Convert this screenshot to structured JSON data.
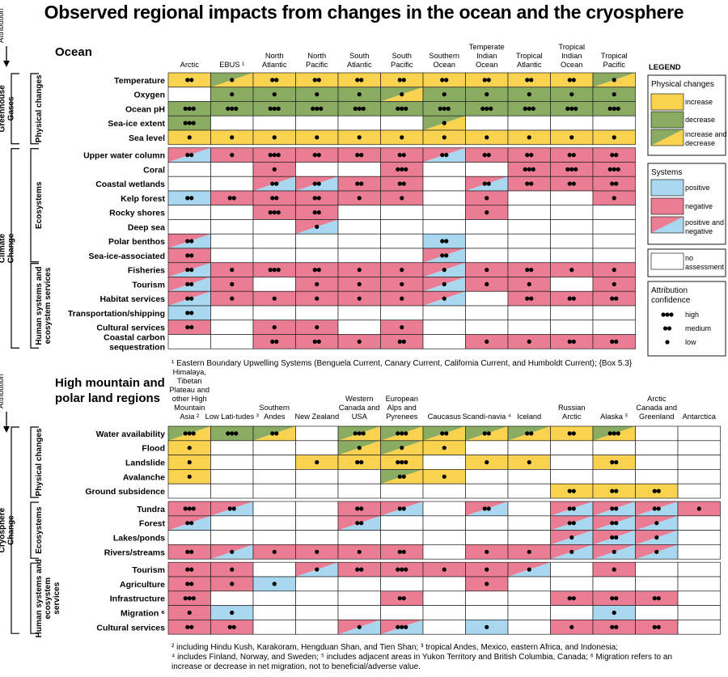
{
  "title": "Observed regional impacts from changes in the ocean and the cryosphere",
  "colors": {
    "increase": "#f9d24f",
    "decrease": "#8aab62",
    "positive": "#a8d7ef",
    "negative": "#ea7d93",
    "none": "#ffffff"
  },
  "attribution_label": "Attribution",
  "legend": {
    "title": "LEGEND",
    "physical_title": "Physical changes",
    "physical_items": [
      "increase",
      "decrease",
      "increase and decrease"
    ],
    "systems_title": "Systems",
    "systems_items": [
      "positive",
      "negative",
      "positive and negative"
    ],
    "no_assessment": "no assessment",
    "confidence_title": "Attribution confidence",
    "confidence_items": [
      "high",
      "medium",
      "low"
    ]
  },
  "chart_data": [
    {
      "type": "table",
      "title": "Ocean",
      "columns": [
        "Arctic",
        "EBUS ¹",
        "North Atlantic",
        "North Pacific",
        "South Atlantic",
        "South Pacific",
        "Southern Ocean",
        "Temperate Indian Ocean",
        "Tropical Atlantic",
        "Tropical Indian Ocean",
        "Tropical Pacific"
      ],
      "drivers": [
        {
          "label": "Greenhouse Gases",
          "groups": [
            {
              "label": "Physical changes",
              "rows": [
                {
                  "label": "Temperature",
                  "cells": [
                    "i2",
                    "id1",
                    "i2",
                    "i2",
                    "i2",
                    "i2",
                    "i2",
                    "i2",
                    "i2",
                    "i2",
                    "id1"
                  ]
                },
                {
                  "label": "Oxygen",
                  "cells": [
                    "n0",
                    "d1",
                    "d1",
                    "d1",
                    "d1",
                    "id1",
                    "d1",
                    "d1",
                    "d1",
                    "d1",
                    "d1"
                  ]
                },
                {
                  "label": "Ocean pH",
                  "cells": [
                    "d3",
                    "d3",
                    "d3",
                    "d3",
                    "d3",
                    "d3",
                    "d3",
                    "d3",
                    "d3",
                    "d3",
                    "d3"
                  ]
                },
                {
                  "label": "Sea-ice extent",
                  "cells": [
                    "d3",
                    "n0",
                    "n0",
                    "n0",
                    "n0",
                    "n0",
                    "id1",
                    "n0",
                    "n0",
                    "n0",
                    "n0"
                  ]
                },
                {
                  "label": "Sea level",
                  "cells": [
                    "i1",
                    "i1",
                    "i1",
                    "i1",
                    "i1",
                    "i1",
                    "i1",
                    "i1",
                    "i1",
                    "i1",
                    "i1"
                  ]
                }
              ]
            }
          ]
        },
        {
          "label": "Climate Change",
          "groups": [
            {
              "label": "Ecosystems",
              "rows": [
                {
                  "label": "Upper water column",
                  "cells": [
                    "pn2",
                    "g1",
                    "g3",
                    "g2",
                    "g2",
                    "g2",
                    "pn2",
                    "g2",
                    "g2",
                    "g2",
                    "g2"
                  ]
                },
                {
                  "label": "Coral",
                  "cells": [
                    "n0",
                    "n0",
                    "g1",
                    "n0",
                    "n0",
                    "g3",
                    "n0",
                    "n0",
                    "g3",
                    "g3",
                    "g3"
                  ]
                },
                {
                  "label": "Coastal wetlands",
                  "cells": [
                    "n0",
                    "n0",
                    "pn2",
                    "pn2",
                    "g2",
                    "g2",
                    "n0",
                    "pn2",
                    "g2",
                    "g2",
                    "g2"
                  ]
                },
                {
                  "label": "Kelp forest",
                  "cells": [
                    "p2",
                    "g2",
                    "g2",
                    "g2",
                    "g1",
                    "g1",
                    "n0",
                    "g1",
                    "n0",
                    "n0",
                    "g1"
                  ]
                },
                {
                  "label": "Rocky shores",
                  "cells": [
                    "n0",
                    "n0",
                    "g3",
                    "g2",
                    "n0",
                    "n0",
                    "n0",
                    "g1",
                    "n0",
                    "n0",
                    "n0"
                  ]
                },
                {
                  "label": "Deep sea",
                  "cells": [
                    "n0",
                    "n0",
                    "n0",
                    "pn1",
                    "n0",
                    "n0",
                    "n0",
                    "n0",
                    "n0",
                    "n0",
                    "n0"
                  ]
                },
                {
                  "label": "Polar benthos",
                  "cells": [
                    "pn2",
                    "n0",
                    "n0",
                    "n0",
                    "n0",
                    "n0",
                    "p2",
                    "n0",
                    "n0",
                    "n0",
                    "n0"
                  ]
                },
                {
                  "label": "Sea-ice-associated",
                  "cells": [
                    "g2",
                    "n0",
                    "n0",
                    "n0",
                    "n0",
                    "n0",
                    "pn2",
                    "n0",
                    "n0",
                    "n0",
                    "n0"
                  ]
                }
              ]
            },
            {
              "label": "Human systems and ecosystem services",
              "rows": [
                {
                  "label": "Fisheries",
                  "cells": [
                    "pn2",
                    "g1",
                    "g3",
                    "g2",
                    "g1",
                    "g1",
                    "pn1",
                    "g1",
                    "g2",
                    "g1",
                    "g1"
                  ]
                },
                {
                  "label": "Tourism",
                  "cells": [
                    "pn2",
                    "g1",
                    "n0",
                    "g1",
                    "g1",
                    "g1",
                    "pn1",
                    "g1",
                    "g1",
                    "n0",
                    "g1"
                  ]
                },
                {
                  "label": "Habitat services",
                  "cells": [
                    "pn2",
                    "g1",
                    "g1",
                    "g1",
                    "g1",
                    "g1",
                    "pn1",
                    "n0",
                    "g2",
                    "g2",
                    "g2"
                  ]
                },
                {
                  "label": "Transportation/shipping",
                  "cells": [
                    "p2",
                    "n0",
                    "n0",
                    "n0",
                    "n0",
                    "n0",
                    "n0",
                    "n0",
                    "n0",
                    "n0",
                    "n0"
                  ]
                },
                {
                  "label": "Cultural services",
                  "cells": [
                    "g2",
                    "n0",
                    "g1",
                    "g1",
                    "n0",
                    "g1",
                    "n0",
                    "n0",
                    "n0",
                    "n0",
                    "n0"
                  ]
                },
                {
                  "label": "Coastal carbon sequestration",
                  "cells": [
                    "n0",
                    "n0",
                    "g2",
                    "g2",
                    "g1",
                    "g2",
                    "n0",
                    "g1",
                    "g1",
                    "g2",
                    "g2"
                  ]
                }
              ]
            }
          ]
        }
      ]
    },
    {
      "type": "table",
      "title": "High mountain and polar land regions",
      "columns": [
        "Himalaya, Tibetan Plateau and other High Mountain Asia ²",
        "Low Lati- tudes ³",
        "Southern Andes",
        "New Zealand",
        "Western Canada and USA",
        "European Alps and Pyrenees",
        "Caucasus",
        "Scandi- navia ⁴",
        "Iceland",
        "Russian Arctic",
        "Alaska ⁵",
        "Arctic Canada and Greenland",
        "Antarctica"
      ],
      "drivers": [
        {
          "label": "Cryosphere Change",
          "groups": [
            {
              "label": "Physical changes",
              "rows": [
                {
                  "label": "Water availability",
                  "cells": [
                    "id3",
                    "d3",
                    "id2",
                    "n0",
                    "id3",
                    "id3",
                    "id2",
                    "id2",
                    "id2",
                    "i2",
                    "id3",
                    "n0",
                    "n0"
                  ]
                },
                {
                  "label": "Flood",
                  "cells": [
                    "i1",
                    "n0",
                    "n0",
                    "n0",
                    "id1",
                    "id1",
                    "i1",
                    "n0",
                    "n0",
                    "n0",
                    "n0",
                    "n0",
                    "n0"
                  ]
                },
                {
                  "label": "Landslide",
                  "cells": [
                    "i1",
                    "n0",
                    "n0",
                    "i1",
                    "i2",
                    "i3",
                    "n0",
                    "i1",
                    "i1",
                    "n0",
                    "i2",
                    "n0",
                    "n0"
                  ]
                },
                {
                  "label": "Avalanche",
                  "cells": [
                    "i1",
                    "n0",
                    "n0",
                    "n0",
                    "n0",
                    "id2",
                    "i1",
                    "n0",
                    "n0",
                    "n0",
                    "n0",
                    "n0",
                    "n0"
                  ]
                },
                {
                  "label": "Ground subsidence",
                  "cells": [
                    "n0",
                    "n0",
                    "n0",
                    "n0",
                    "n0",
                    "n0",
                    "n0",
                    "n0",
                    "n0",
                    "i2",
                    "i2",
                    "i2",
                    "n0"
                  ]
                }
              ]
            },
            {
              "label": "Ecosystems",
              "rows": [
                {
                  "label": "Tundra",
                  "cells": [
                    "g3",
                    "pn2",
                    "n0",
                    "n0",
                    "g2",
                    "pn2",
                    "n0",
                    "pn2",
                    "n0",
                    "pn2",
                    "pn2",
                    "pn2",
                    "g1"
                  ]
                },
                {
                  "label": "Forest",
                  "cells": [
                    "pn2",
                    "n0",
                    "n0",
                    "n0",
                    "pn2",
                    "n0",
                    "n0",
                    "n0",
                    "n0",
                    "pn2",
                    "pn2",
                    "pn1",
                    "n0"
                  ]
                },
                {
                  "label": "Lakes/ponds",
                  "cells": [
                    "n0",
                    "n0",
                    "n0",
                    "n0",
                    "n0",
                    "n0",
                    "n0",
                    "n0",
                    "n0",
                    "pn1",
                    "pn2",
                    "pn1",
                    "n0"
                  ]
                },
                {
                  "label": "Rivers/streams",
                  "cells": [
                    "g2",
                    "pn1",
                    "g1",
                    "g1",
                    "g1",
                    "g2",
                    "n0",
                    "g1",
                    "g1",
                    "pn1",
                    "pn1",
                    "pn1",
                    "n0"
                  ]
                }
              ]
            },
            {
              "label": "Human systems and ecosystem services",
              "rows": [
                {
                  "label": "Tourism",
                  "cells": [
                    "g2",
                    "g1",
                    "n0",
                    "pn1",
                    "g2",
                    "g3",
                    "g1",
                    "g1",
                    "pn1",
                    "n0",
                    "g1",
                    "n0",
                    "n0"
                  ]
                },
                {
                  "label": "Agriculture",
                  "cells": [
                    "g2",
                    "g1",
                    "p1",
                    "n0",
                    "n0",
                    "n0",
                    "n0",
                    "g1",
                    "n0",
                    "n0",
                    "n0",
                    "n0",
                    "n0"
                  ]
                },
                {
                  "label": "Infrastructure",
                  "cells": [
                    "g3",
                    "n0",
                    "n0",
                    "n0",
                    "n0",
                    "g2",
                    "n0",
                    "n0",
                    "n0",
                    "g2",
                    "g2",
                    "g2",
                    "n0"
                  ]
                },
                {
                  "label": "Migration ⁶",
                  "cells": [
                    "g1",
                    "p1",
                    "n0",
                    "n0",
                    "n0",
                    "n0",
                    "n0",
                    "n0",
                    "n0",
                    "n0",
                    "p1",
                    "n0",
                    "n0"
                  ]
                },
                {
                  "label": "Cultural services",
                  "cells": [
                    "g2",
                    "g2",
                    "n0",
                    "n0",
                    "pn1",
                    "pn3",
                    "n0",
                    "p1",
                    "n0",
                    "g1",
                    "g2",
                    "g2",
                    "n0"
                  ]
                }
              ]
            }
          ]
        }
      ]
    }
  ],
  "footnotes": {
    "ocean": "¹ Eastern Boundary Upwelling Systems (Benguela Current, Canary Current, California Current, and Humboldt Current); {Box 5.3}",
    "land": [
      "² including Hindu Kush, Karakoram, Hengduan Shan, and Tien Shan; ³ tropical Andes, Mexico, eastern Africa, and Indonesia;",
      "⁴ includes Finland, Norway, and Sweden; ⁵ includes adjacent areas in Yukon Territory and British Columbia, Canada; ⁶ Migration refers to an",
      "increase or decrease in net migration, not to beneficial/adverse value."
    ]
  }
}
